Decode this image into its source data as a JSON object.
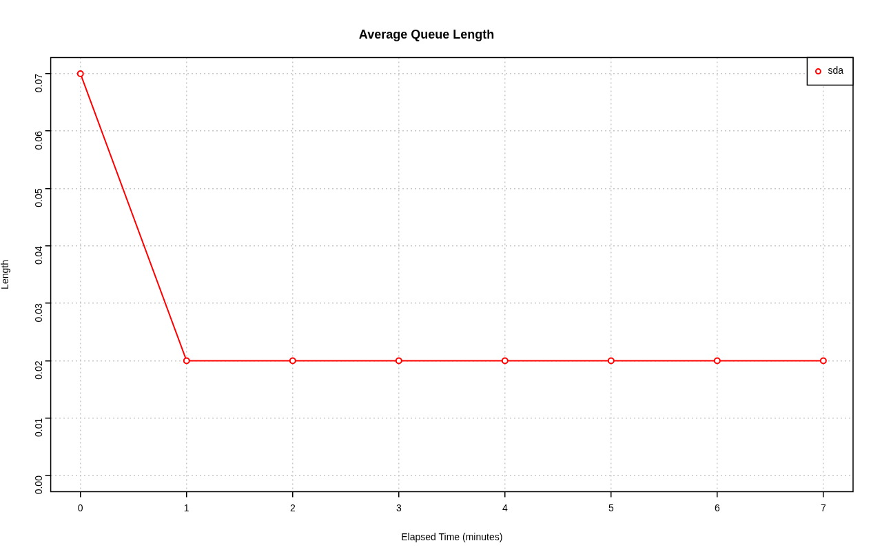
{
  "chart_data": {
    "type": "line",
    "title": "Average Queue Length",
    "xlabel": "Elapsed Time (minutes)",
    "ylabel": "Length",
    "x": [
      0,
      1,
      2,
      3,
      4,
      5,
      6,
      7
    ],
    "series": [
      {
        "name": "sda",
        "color": "#ff0000",
        "values": [
          0.07,
          0.02,
          0.02,
          0.02,
          0.02,
          0.02,
          0.02,
          0.02
        ]
      }
    ],
    "xlim": [
      -0.28,
      7.28
    ],
    "xticks": [
      0,
      1,
      2,
      3,
      4,
      5,
      6,
      7
    ],
    "ylim": [
      -0.0028,
      0.0728
    ],
    "yticks": [
      {
        "value": 0,
        "label": "0.00"
      },
      {
        "value": 0.01,
        "label": "0.01"
      },
      {
        "value": 0.02,
        "label": "0.02"
      },
      {
        "value": 0.03,
        "label": "0.03"
      },
      {
        "value": 0.04,
        "label": "0.04"
      },
      {
        "value": 0.05,
        "label": "0.05"
      },
      {
        "value": 0.06,
        "label": "0.06"
      },
      {
        "value": 0.07,
        "label": "0.07"
      }
    ],
    "grid": true,
    "legend": "top right",
    "marker": "circle",
    "line_style": "solid"
  }
}
